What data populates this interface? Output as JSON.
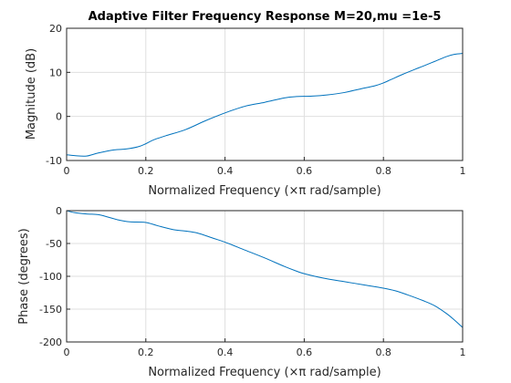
{
  "chart_data": [
    {
      "type": "line",
      "title": "Adaptive Filter Frequency Response M=20,mu =1e-5",
      "xlabel": "Normalized Frequency  (×π rad/sample)",
      "ylabel": "Magnitude (dB)",
      "xlim": [
        0,
        1
      ],
      "ylim": [
        -10,
        20
      ],
      "xticks": [
        "0",
        "0.2",
        "0.4",
        "0.6",
        "0.8",
        "1"
      ],
      "yticks": [
        "-10",
        "0",
        "10",
        "20"
      ],
      "grid": true,
      "series": [
        {
          "x": [
            0,
            0.02,
            0.05,
            0.08,
            0.12,
            0.15,
            0.18,
            0.2,
            0.22,
            0.25,
            0.3,
            0.35,
            0.4,
            0.45,
            0.5,
            0.55,
            0.58,
            0.62,
            0.66,
            0.7,
            0.74,
            0.78,
            0.8,
            0.82,
            0.85,
            0.88,
            0.9,
            0.93,
            0.96,
            0.98,
            1.0
          ],
          "y": [
            -8.7,
            -8.9,
            -9.0,
            -8.3,
            -7.6,
            -7.4,
            -6.9,
            -6.2,
            -5.3,
            -4.4,
            -3.0,
            -1.0,
            0.8,
            2.3,
            3.2,
            4.2,
            4.5,
            4.6,
            4.9,
            5.4,
            6.2,
            7.0,
            7.6,
            8.4,
            9.6,
            10.7,
            11.4,
            12.5,
            13.6,
            14.1,
            14.3
          ]
        }
      ]
    },
    {
      "type": "line",
      "title": "",
      "xlabel": "Normalized Frequency  (×π rad/sample)",
      "ylabel": "Phase (degrees)",
      "xlim": [
        0,
        1
      ],
      "ylim": [
        -200,
        0
      ],
      "xticks": [
        "0",
        "0.2",
        "0.4",
        "0.6",
        "0.8",
        "1"
      ],
      "yticks": [
        "-200",
        "-150",
        "-100",
        "-50",
        "0"
      ],
      "grid": true,
      "series": [
        {
          "x": [
            0,
            0.02,
            0.05,
            0.08,
            0.1,
            0.13,
            0.16,
            0.2,
            0.23,
            0.27,
            0.3,
            0.33,
            0.37,
            0.4,
            0.45,
            0.5,
            0.55,
            0.58,
            0.6,
            0.65,
            0.7,
            0.75,
            0.8,
            0.83,
            0.86,
            0.9,
            0.93,
            0.96,
            0.98,
            1.0
          ],
          "y": [
            0,
            -3,
            -5,
            -6,
            -9,
            -14,
            -17,
            -18,
            -23,
            -29,
            -31,
            -34,
            -42,
            -48,
            -60,
            -72,
            -85,
            -92,
            -96,
            -103,
            -108,
            -113,
            -118,
            -122,
            -128,
            -137,
            -145,
            -157,
            -167,
            -178
          ]
        }
      ]
    }
  ]
}
